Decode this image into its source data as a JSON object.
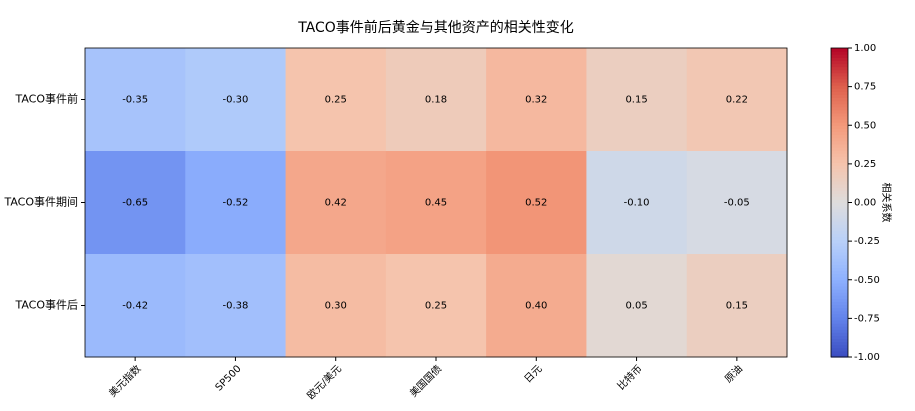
{
  "chart_data": {
    "type": "heatmap",
    "title": "TACO事件前后黄金与其他资产的相关性变化",
    "categories": [
      "美元指数",
      "SP500",
      "欧元/美元",
      "美国国债",
      "日元",
      "比特币",
      "原油"
    ],
    "rows": [
      "TACO事件前",
      "TACO事件期间",
      "TACO事件后"
    ],
    "values": [
      [
        -0.35,
        -0.3,
        0.25,
        0.18,
        0.32,
        0.15,
        0.22
      ],
      [
        -0.65,
        -0.52,
        0.42,
        0.45,
        0.52,
        -0.1,
        -0.05
      ],
      [
        -0.42,
        -0.38,
        0.3,
        0.25,
        0.4,
        0.05,
        0.15
      ]
    ],
    "value_labels": [
      [
        "-0.35",
        "-0.30",
        "0.25",
        "0.18",
        "0.32",
        "0.15",
        "0.22"
      ],
      [
        "-0.65",
        "-0.52",
        "0.42",
        "0.45",
        "0.52",
        "-0.10",
        "-0.05"
      ],
      [
        "-0.42",
        "-0.38",
        "0.30",
        "0.25",
        "0.40",
        "0.05",
        "0.15"
      ]
    ],
    "colormap": "coolwarm",
    "colorbar_label": "相关系数",
    "clim": [
      -1,
      1
    ],
    "cticks": [
      {
        "value": -1,
        "label": "-1.00"
      },
      {
        "value": -0.75,
        "label": "-0.75"
      },
      {
        "value": -0.5,
        "label": "-0.50"
      },
      {
        "value": -0.25,
        "label": "-0.25"
      },
      {
        "value": 0,
        "label": "0.00"
      },
      {
        "value": 0.25,
        "label": "0.25"
      },
      {
        "value": 0.5,
        "label": "0.50"
      },
      {
        "value": 0.75,
        "label": "0.75"
      },
      {
        "value": 1,
        "label": "1.00"
      }
    ]
  }
}
